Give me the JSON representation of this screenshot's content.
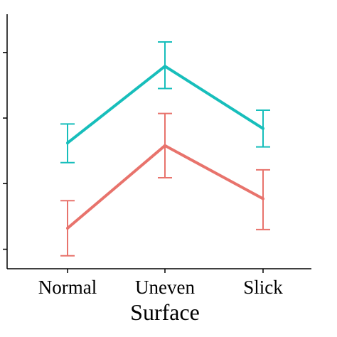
{
  "chart_data": {
    "type": "line",
    "xlabel": "Surface",
    "ylabel": "",
    "title": "",
    "categories": [
      "Normal",
      "Uneven",
      "Slick"
    ],
    "ylim": [
      0,
      4
    ],
    "y_ticks": [
      0.2,
      1.2,
      2.2,
      3.2
    ],
    "y_tick_labels_visible": false,
    "grid": false,
    "legend": "none",
    "series": [
      {
        "color": "#17BEBB",
        "values": [
          1.82,
          2.99,
          2.04
        ],
        "error_low": [
          1.52,
          2.65,
          1.76
        ],
        "error_high": [
          2.11,
          3.36,
          2.32
        ]
      },
      {
        "color": "#E8736C",
        "values": [
          0.52,
          1.78,
          0.97
        ],
        "error_low": [
          0.1,
          1.29,
          0.5
        ],
        "error_high": [
          0.94,
          2.27,
          1.41
        ]
      }
    ]
  }
}
